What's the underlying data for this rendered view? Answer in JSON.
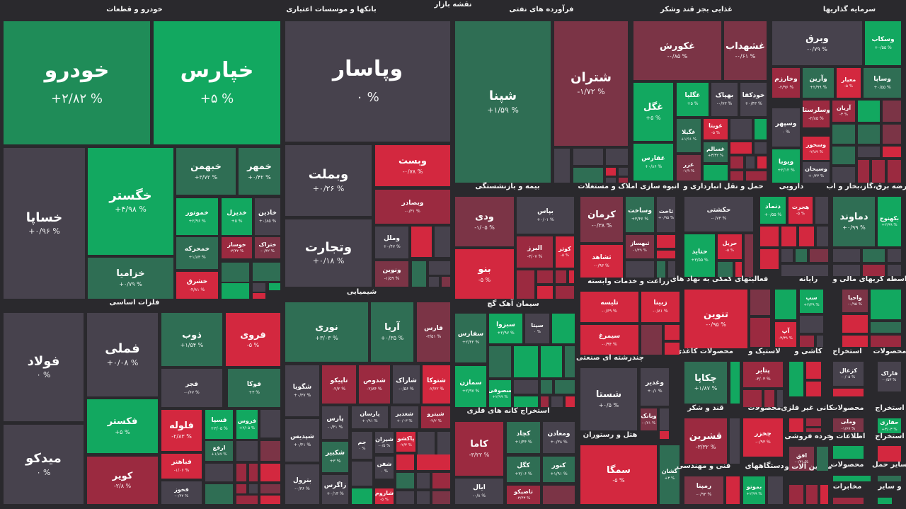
{
  "map_title": "نقشه بازار",
  "palette": {
    "G5": "#12a860",
    "G1": "#1f8c58",
    "G": "#2f6e54",
    "N": "#47424d",
    "D": "#7b3446",
    "D2": "#9b2a40",
    "R5": "#d3283f",
    "background": "#2a292d"
  },
  "sectors": [
    {
      "title": "خودرو و قطعات",
      "tiles": [
        {
          "symbol": "خودرو",
          "change": "+۲/۸۲ %",
          "color": "G1"
        },
        {
          "symbol": "خپارس",
          "change": "+۵ %",
          "color": "G5"
        },
        {
          "symbol": "خساپا",
          "change": "+۰/۹۶ %",
          "color": "N"
        },
        {
          "symbol": "خگستر",
          "change": "+۴/۹۸ %",
          "color": "G5"
        },
        {
          "symbol": "خزامیا",
          "change": "+۰/۷۹ %",
          "color": "G"
        },
        {
          "symbol": "خبهمن",
          "change": "+۳/۷۲ %",
          "color": "G"
        },
        {
          "symbol": "خمهر",
          "change": "+۰/۴۲ %",
          "color": "G"
        },
        {
          "symbol": "خموتور",
          "change": "+۲/۹۶ %",
          "color": "G5"
        },
        {
          "symbol": "خدیزل",
          "change": "+۵ %",
          "color": "G5"
        },
        {
          "symbol": "خاذین",
          "change": "+۰/۸۵ %",
          "color": "N"
        },
        {
          "symbol": "خمحرکه",
          "change": "+۱/۸۳ %",
          "color": "G"
        },
        {
          "symbol": "خوساز",
          "change": "-۳/۳۲ %",
          "color": "D2"
        },
        {
          "symbol": "ختراک",
          "change": "-۰/۴۲ %",
          "color": "D"
        },
        {
          "symbol": "خشرق",
          "change": "-۴/۸۱ %",
          "color": "R5"
        }
      ]
    },
    {
      "title": "بانکها و موسسات اعتباری",
      "tiles": [
        {
          "symbol": "وپاسار",
          "change": "۰ %",
          "color": "N"
        },
        {
          "symbol": "وبملت",
          "change": "+۰/۲۶ %",
          "color": "N"
        },
        {
          "symbol": "وتجارت",
          "change": "+۰/۱۸ %",
          "color": "N"
        },
        {
          "symbol": "وبست",
          "change": "-۰/۷۸ %",
          "color": "R5"
        },
        {
          "symbol": "وبصادر",
          "change": "-۰/۳۱ %",
          "color": "D2"
        },
        {
          "symbol": "وملل",
          "change": "+۰/۴۷ %",
          "color": "N"
        },
        {
          "symbol": "ونوین",
          "change": "-۱/۵۹ %",
          "color": "D"
        }
      ]
    },
    {
      "title": "فرآورده های نفتی",
      "tiles": [
        {
          "symbol": "شپنا",
          "change": "+۱/۵۹ %",
          "color": "G"
        },
        {
          "symbol": "شتران",
          "change": "-۱/۷۲ %",
          "color": "D"
        }
      ]
    },
    {
      "title": "غذایی بجز قند وشکر",
      "tiles": [
        {
          "symbol": "غکورش",
          "change": "-۰/۸۵ %",
          "color": "D"
        },
        {
          "symbol": "غشهداب",
          "change": "-۰/۶۱ %",
          "color": "D"
        },
        {
          "symbol": "غگل",
          "change": "+۵ %",
          "color": "G5"
        },
        {
          "symbol": "غفارس",
          "change": "+۰/۸۶ %",
          "color": "G5"
        },
        {
          "symbol": "غگلپا",
          "change": "+۵ %",
          "color": "G5"
        },
        {
          "symbol": "بهپاک",
          "change": "-۰/۷۳ %",
          "color": "N"
        },
        {
          "symbol": "خودکفا",
          "change": "+۰/۴۳ %",
          "color": "N"
        },
        {
          "symbol": "غگیلا",
          "change": "+۱/۹۱ %",
          "color": "G"
        },
        {
          "symbol": "غویتا",
          "change": "-۵ %",
          "color": "R5"
        },
        {
          "symbol": "غسالم",
          "change": "+۳/۳۲ %",
          "color": "G"
        },
        {
          "symbol": "غزر",
          "change": "-۱/۹ %",
          "color": "D"
        }
      ]
    },
    {
      "title": "سرمایه گذاریها",
      "tiles": [
        {
          "symbol": "وبرق",
          "change": "-۰/۷۹ %",
          "color": "N"
        },
        {
          "symbol": "وسکاب",
          "change": "+۰/۵۵ %",
          "color": "G5"
        },
        {
          "symbol": "وخارزم",
          "change": "-۲/۹۶ %",
          "color": "D2"
        },
        {
          "symbol": "وآرین",
          "change": "+۲/۹۹ %",
          "color": "G"
        },
        {
          "symbol": "معیار",
          "change": "-۵ %",
          "color": "R5"
        },
        {
          "symbol": "وساپا",
          "change": "+۰/۵۵ %",
          "color": "G"
        },
        {
          "symbol": "وسپهر",
          "change": "۰ %",
          "color": "N"
        },
        {
          "symbol": "وسلرستا",
          "change": "-۲/۸۵ %",
          "color": "D2"
        },
        {
          "symbol": "آریان",
          "change": "-۳ %",
          "color": "D2"
        },
        {
          "symbol": "وسخوز",
          "change": "-۲/۸۹ %",
          "color": "R5"
        },
        {
          "symbol": "ویوبا",
          "change": "+۲/۱۲ %",
          "color": "G5"
        },
        {
          "symbol": "وسبحان",
          "change": "+۰/۴۳ %",
          "color": "N"
        }
      ]
    },
    {
      "title": "فلزات اساسی",
      "tiles": [
        {
          "symbol": "فولاد",
          "change": "۰ %",
          "color": "N"
        },
        {
          "symbol": "میدکو",
          "change": "۰ %",
          "color": "N"
        },
        {
          "symbol": "فملی",
          "change": "+۰/۰۸ %",
          "color": "N"
        },
        {
          "symbol": "فکستر",
          "change": "+۵ %",
          "color": "G5"
        },
        {
          "symbol": "کویر",
          "change": "-۲/۸ %",
          "color": "D2"
        },
        {
          "symbol": "ذوب",
          "change": "+۱/۵۴ %",
          "color": "G"
        },
        {
          "symbol": "فروی",
          "change": "-۵ %",
          "color": "R5"
        },
        {
          "symbol": "فجر",
          "change": "-۰/۶۷ %",
          "color": "N"
        },
        {
          "symbol": "فوکا",
          "change": "+۳ %",
          "color": "G"
        },
        {
          "symbol": "فلوله",
          "change": "-۲/۸۳ %",
          "color": "R5"
        },
        {
          "symbol": "فسپا",
          "change": "+۳/۰۵ %",
          "color": "G5"
        },
        {
          "symbol": "فروس",
          "change": "+۲/۰۵ %",
          "color": "G5"
        },
        {
          "symbol": "ارفع",
          "change": "+۱/۸۷ %",
          "color": "G"
        },
        {
          "symbol": "فباهنر",
          "change": "-۱/۰۶ %",
          "color": "R5"
        },
        {
          "symbol": "فخوز",
          "change": "-۰/۴۲ %",
          "color": "N"
        }
      ]
    },
    {
      "title": "شیمیایی",
      "tiles": [
        {
          "symbol": "نوری",
          "change": "+۳/۰۳ %",
          "color": "G"
        },
        {
          "symbol": "آریا",
          "change": "+۰/۳۵ %",
          "color": "G"
        },
        {
          "symbol": "فارس",
          "change": "-۳/۵۱ %",
          "color": "D"
        },
        {
          "symbol": "شگویا",
          "change": "+۰/۳۷ %",
          "color": "N"
        },
        {
          "symbol": "تاپیکو",
          "change": "-۲/۲ %",
          "color": "D2"
        },
        {
          "symbol": "شدوص",
          "change": "-۲/۸۴ %",
          "color": "D2"
        },
        {
          "symbol": "شاراک",
          "change": "-۰/۵۶ %",
          "color": "N"
        },
        {
          "symbol": "شتوکا",
          "change": "-۲/۷۲ %",
          "color": "R5"
        },
        {
          "symbol": "پارس",
          "change": "-۰/۴۱ %",
          "color": "N"
        },
        {
          "symbol": "پارسان",
          "change": "+۰/۹۱ %",
          "color": "N"
        },
        {
          "symbol": "شغدیر",
          "change": "+۰/۰۳ %",
          "color": "N"
        },
        {
          "symbol": "شیترو",
          "change": "-۲/۲ %",
          "color": "D2"
        },
        {
          "symbol": "شپدیس",
          "change": "+۰/۴۱ %",
          "color": "N"
        },
        {
          "symbol": "شکبیر",
          "change": "+۳ %",
          "color": "G"
        },
        {
          "symbol": "جم",
          "change": "۰ %",
          "color": "N"
        },
        {
          "symbol": "شیران",
          "change": "-۰/۵ %",
          "color": "N"
        },
        {
          "symbol": "پاکشو",
          "change": "-۲/۳ %",
          "color": "R5"
        },
        {
          "symbol": "بترول",
          "change": "-۰/۳۶ %",
          "color": "N"
        },
        {
          "symbol": "زاگرس",
          "change": "+۰/۱۳ %",
          "color": "N"
        },
        {
          "symbol": "شفن",
          "change": "۰ %",
          "color": "N"
        },
        {
          "symbol": "شاروم",
          "change": "-۵ %",
          "color": "R5"
        }
      ]
    },
    {
      "title": "بیمه و بازنشستگی",
      "tiles": [
        {
          "symbol": "ودی",
          "change": "-۱/۰۵ %",
          "color": "D"
        },
        {
          "symbol": "بنو",
          "change": "-۵ %",
          "color": "R5"
        },
        {
          "symbol": "بپاس",
          "change": "+۰/۰۱ %",
          "color": "N"
        },
        {
          "symbol": "البرز",
          "change": "-۳/۰۷ %",
          "color": "D2"
        },
        {
          "symbol": "کوثر",
          "change": "-۵ %",
          "color": "R5"
        }
      ]
    },
    {
      "title": "انبوه سازی املاک و مستغلات",
      "tiles": [
        {
          "symbol": "کرمان",
          "change": "-۰/۳۸ %",
          "color": "D"
        },
        {
          "symbol": "وساخت",
          "change": "+۳/۴۶ %",
          "color": "G"
        },
        {
          "symbol": "ثاخت",
          "change": "+۰/۹۵ %",
          "color": "N"
        },
        {
          "symbol": "ثشاهد",
          "change": "-۰/۹۳ %",
          "color": "R5"
        },
        {
          "symbol": "ثبهساز",
          "change": "-۱/۴۹ %",
          "color": "D"
        }
      ]
    },
    {
      "title": "حمل و نقل انبارداری و",
      "tiles": [
        {
          "symbol": "حکشتی",
          "change": "-۰/۷۳ %",
          "color": "N"
        },
        {
          "symbol": "حتاید",
          "change": "+۳/۵۵ %",
          "color": "G5"
        },
        {
          "symbol": "حریل",
          "change": "-۵ %",
          "color": "R5"
        }
      ]
    },
    {
      "title": "دارویی",
      "tiles": [
        {
          "symbol": "دتماد",
          "change": "+۰/۵۵ %",
          "color": "G5"
        },
        {
          "symbol": "هجرت",
          "change": "-۵ %",
          "color": "R5"
        }
      ]
    },
    {
      "title": "عرضه برق،گاز،بخار و آب",
      "tiles": [
        {
          "symbol": "دماوند",
          "change": "+۰/۹۹ %",
          "color": "G"
        },
        {
          "symbol": "بکهنوج",
          "change": "+۲/۹۹ %",
          "color": "G5"
        }
      ]
    },
    {
      "title": "سیمان آهک گچ",
      "tiles": [
        {
          "symbol": "سفارس",
          "change": "+۲/۴۲ %",
          "color": "G"
        },
        {
          "symbol": "سبزوا",
          "change": "+۲/۹۷ %",
          "color": "G5"
        },
        {
          "symbol": "سیتا",
          "change": "۰ %",
          "color": "N"
        },
        {
          "symbol": "سمازن",
          "change": "+۲/۹۷ %",
          "color": "G5"
        },
        {
          "symbol": "سصوفی",
          "change": "+۲/۹۹ %",
          "color": "G5"
        }
      ]
    },
    {
      "title": "استخراج کانه های فلزی",
      "tiles": [
        {
          "symbol": "کاما",
          "change": "-۳/۲۲ %",
          "color": "D2"
        },
        {
          "symbol": "کچاد",
          "change": "+۱/۴۴ %",
          "color": "G"
        },
        {
          "symbol": "ومعادن",
          "change": "+۰/۳۸ %",
          "color": "N"
        },
        {
          "symbol": "کگل",
          "change": "+۳/۰۶ %",
          "color": "G"
        },
        {
          "symbol": "کنور",
          "change": "+۱/۹۱ %",
          "color": "G"
        },
        {
          "symbol": "ایال",
          "change": "-۰/۸ %",
          "color": "N"
        },
        {
          "symbol": "تاصیکو",
          "change": "-۳/۴۳ %",
          "color": "D2"
        }
      ]
    },
    {
      "title": "زراعت و خدمات وابسته",
      "tiles": [
        {
          "symbol": "تلیسه",
          "change": "-۰/۶۹ %",
          "color": "R5"
        },
        {
          "symbol": "زبینا",
          "change": "-۰/۸۱ %",
          "color": "R5"
        },
        {
          "symbol": "سیمرغ",
          "change": "-۰/۹۴ %",
          "color": "R5"
        }
      ]
    },
    {
      "title": "فعالیتهای کمکی به نهاد های",
      "tiles": [
        {
          "symbol": "تنوین",
          "change": "-۰/۹۵ %",
          "color": "R5"
        }
      ]
    },
    {
      "title": "رایانه",
      "tiles": [
        {
          "symbol": "سپ",
          "change": "+۲/۳۹ %",
          "color": "G5"
        },
        {
          "symbol": "آپ",
          "change": "-۳/۳۹ %",
          "color": "R5"
        }
      ]
    },
    {
      "title": "واسطه گریهای مالی و",
      "tiles": [
        {
          "symbol": "واحیا",
          "change": "-۰/۹۵ %",
          "color": "D"
        }
      ]
    },
    {
      "title": "چندرشته ای صنعتی",
      "tiles": [
        {
          "symbol": "شستا",
          "change": "+۰/۵ %",
          "color": "N"
        },
        {
          "symbol": "وغدیر",
          "change": "+۰/۱ %",
          "color": "N"
        },
        {
          "symbol": "وبانک",
          "change": "-۰/۷۱ %",
          "color": "D"
        }
      ]
    },
    {
      "title": "هتل و رستوران",
      "tiles": [
        {
          "symbol": "سمگا",
          "change": "-۵ %",
          "color": "R5"
        },
        {
          "symbol": "گشان",
          "change": "+۳ %",
          "color": "G"
        }
      ]
    },
    {
      "title": "محصولات کاغذی",
      "tiles": [
        {
          "symbol": "چکاپا",
          "change": "+۱/۸۷ %",
          "color": "G"
        }
      ]
    },
    {
      "title": "لاستیک و",
      "tiles": [
        {
          "symbol": "پتایر",
          "change": "-۳/۰۳ %",
          "color": "D2"
        }
      ]
    },
    {
      "title": "قند و شکر",
      "tiles": [
        {
          "symbol": "قشرین",
          "change": "-۳/۳۲ %",
          "color": "D2"
        }
      ]
    },
    {
      "title": "محصولات",
      "tiles": [
        {
          "symbol": "چخزر",
          "change": "-۰/۹۳ %",
          "color": "R5"
        }
      ]
    },
    {
      "title": "فنی و مهندسی",
      "tiles": [
        {
          "symbol": "رمپنا",
          "change": "-۰/۹۳ %",
          "color": "D"
        }
      ]
    },
    {
      "title": "دستگاههای",
      "tiles": [
        {
          "symbol": "بموتو",
          "change": "+۲/۹۹ %",
          "color": "G5"
        }
      ]
    },
    {
      "title": "کاشی و",
      "tiles": []
    },
    {
      "title": "کانی غیر فلزی",
      "tiles": []
    },
    {
      "title": "خرده فروشی",
      "tiles": [
        {
          "symbol": "افق",
          "change": "-۰/۳۱ %",
          "color": "D"
        }
      ]
    },
    {
      "title": "ماشین آلات و",
      "tiles": []
    },
    {
      "title": "استخراج",
      "tiles": [
        {
          "symbol": "کزغال",
          "change": "-۰/۰۵ %",
          "color": "N"
        }
      ]
    },
    {
      "title": "محصولات",
      "tiles": [
        {
          "symbol": "فاراک",
          "change": "-۰/۵۳ %",
          "color": "N"
        }
      ]
    },
    {
      "title": "محصولات",
      "tiles": [
        {
          "symbol": "وملی",
          "change": "-۱/۶۷ %",
          "color": "D"
        }
      ]
    },
    {
      "title": "استخراج",
      "tiles": [
        {
          "symbol": "حفاری",
          "change": "+۳/۰۳ %",
          "color": "G5"
        }
      ]
    },
    {
      "title": "اطلاعات و",
      "tiles": []
    },
    {
      "title": "استخراج",
      "tiles": []
    },
    {
      "title": "محصولات",
      "tiles": []
    },
    {
      "title": "سایر حمل",
      "tiles": []
    },
    {
      "title": "مخابرات",
      "tiles": []
    },
    {
      "title": "و سایر",
      "tiles": []
    }
  ]
}
